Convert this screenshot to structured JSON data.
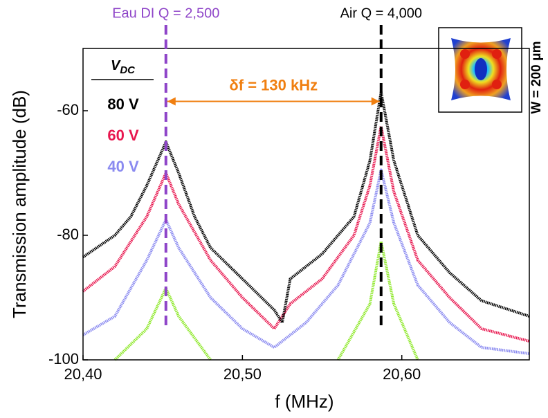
{
  "chart_data": {
    "type": "line",
    "x_label": "f (MHz)",
    "y_label": "Transmission amplitude (dB)",
    "xlim": [
      20.4,
      20.68
    ],
    "ylim": [
      -100,
      -50
    ],
    "xticks": [
      {
        "value": 20.4,
        "label": "20,40"
      },
      {
        "value": 20.5,
        "label": "20,50"
      },
      {
        "value": 20.6,
        "label": "20,60"
      }
    ],
    "yticks": [
      -100,
      -80,
      -60
    ],
    "legend_title": "V",
    "legend_title_sub": "DC",
    "series": [
      {
        "name": "80 V",
        "color": "#000000",
        "x": [
          20.4,
          20.42,
          20.43,
          20.44,
          20.452,
          20.46,
          20.47,
          20.48,
          20.5,
          20.52,
          20.525,
          20.53,
          20.55,
          20.57,
          20.58,
          20.587,
          20.595,
          20.61,
          20.63,
          20.65,
          20.68
        ],
        "values": [
          -83.5,
          -80,
          -77,
          -72,
          -65,
          -70,
          -77,
          -82,
          -87,
          -92,
          -94,
          -87,
          -83,
          -77,
          -68,
          -57,
          -68,
          -80,
          -86,
          -90.5,
          -93
        ]
      },
      {
        "name": "60 V",
        "color": "#e8174f",
        "x": [
          20.4,
          20.42,
          20.44,
          20.452,
          20.46,
          20.48,
          20.5,
          20.52,
          20.53,
          20.55,
          20.57,
          20.58,
          20.587,
          20.595,
          20.61,
          20.63,
          20.65,
          20.68
        ],
        "values": [
          -89,
          -85,
          -77,
          -70,
          -75,
          -84,
          -90,
          -95,
          -91,
          -87,
          -80,
          -72,
          -62.5,
          -73,
          -84,
          -90,
          -95,
          -97
        ]
      },
      {
        "name": "40 V",
        "color": "#8a8af0",
        "x": [
          20.4,
          20.42,
          20.44,
          20.452,
          20.46,
          20.48,
          20.5,
          20.52,
          20.54,
          20.56,
          20.58,
          20.587,
          20.595,
          20.61,
          20.63,
          20.65,
          20.68
        ],
        "values": [
          -96,
          -93,
          -84,
          -77.5,
          -82,
          -90,
          -95,
          -98,
          -94,
          -88,
          -78,
          -69.5,
          -78,
          -88,
          -94,
          -98,
          -99
        ]
      },
      {
        "color": "#8ee82a",
        "x": [
          20.42,
          20.44,
          20.452,
          20.46,
          20.48,
          20.52,
          20.56,
          20.58,
          20.587,
          20.595,
          20.61
        ],
        "values": [
          -100,
          -95,
          -88.5,
          -93,
          -100,
          null,
          -100,
          -91,
          -81,
          -91,
          -100
        ]
      }
    ],
    "markers": [
      {
        "x": 20.452,
        "color": "#8e44c8",
        "label": "Eau DI  Q = 2,500"
      },
      {
        "x": 20.587,
        "color": "#000000",
        "label": "Air  Q = 4,000"
      }
    ],
    "arrow": {
      "x": [
        20.452,
        20.587
      ],
      "y": -58.5,
      "color": "#f07f10",
      "label": "δf = 130 kHz"
    },
    "inset_label": "W = 200 μm"
  }
}
